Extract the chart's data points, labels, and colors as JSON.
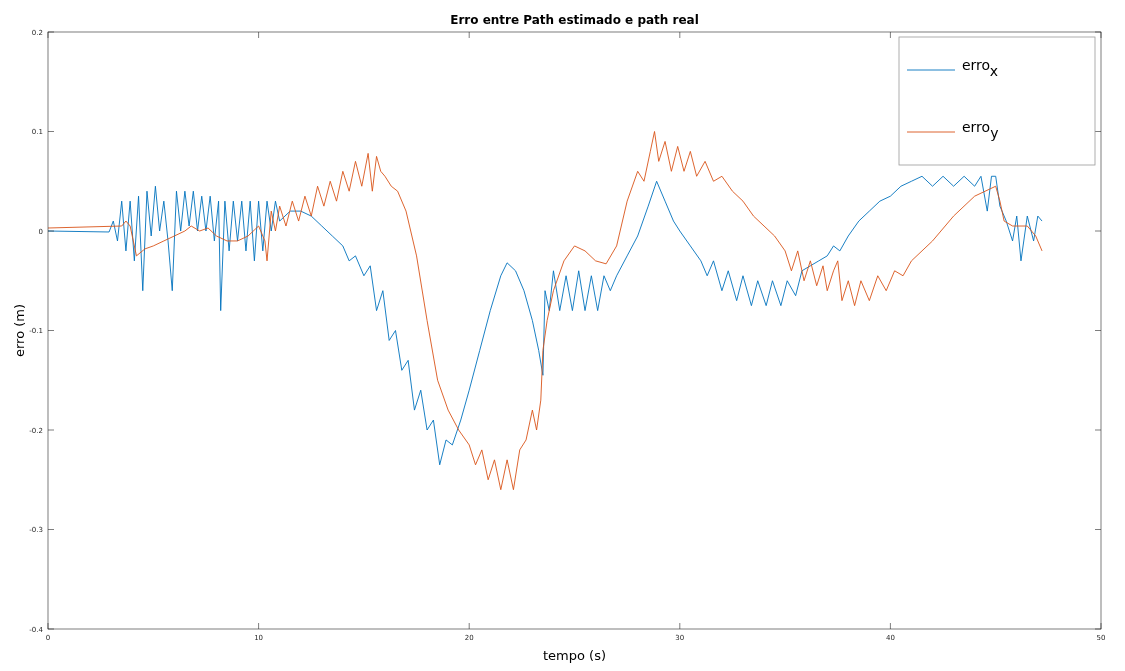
{
  "chart_data": {
    "type": "line",
    "title": "Erro entre Path estimado e path real",
    "xlabel": "tempo (s)",
    "ylabel": "erro (m)",
    "xlim": [
      0,
      50
    ],
    "xticks": [
      0,
      10,
      20,
      30,
      40,
      50
    ],
    "ylim": [
      -0.4,
      0.2
    ],
    "yticks": [
      -0.4,
      -0.3,
      -0.2,
      -0.1,
      0,
      0.1,
      0.2
    ],
    "legend": "top right",
    "grid": false,
    "series": [
      {
        "name": "erro$_{x}$",
        "color": "#0072bd",
        "x": [
          0,
          2.9,
          3.1,
          3.3,
          3.5,
          3.7,
          3.9,
          4.1,
          4.3,
          4.5,
          4.7,
          4.9,
          5.1,
          5.3,
          5.5,
          5.7,
          5.9,
          6.1,
          6.3,
          6.5,
          6.7,
          6.9,
          7.1,
          7.3,
          7.5,
          7.7,
          7.9,
          8.1,
          8.2,
          8.4,
          8.6,
          8.8,
          9.0,
          9.2,
          9.4,
          9.6,
          9.8,
          10.0,
          10.2,
          10.4,
          10.6,
          10.8,
          11.0,
          11.5,
          12.0,
          12.5,
          13,
          13.5,
          14,
          14.3,
          14.6,
          15,
          15.3,
          15.6,
          15.9,
          16.2,
          16.5,
          16.8,
          17.1,
          17.4,
          17.7,
          18,
          18.3,
          18.6,
          18.9,
          19.2,
          19.6,
          20,
          20.5,
          21,
          21.5,
          21.8,
          22.2,
          22.6,
          23,
          23.3,
          23.5,
          23.6,
          23.8,
          24,
          24.3,
          24.6,
          24.9,
          25.2,
          25.5,
          25.8,
          26.1,
          26.4,
          26.7,
          27,
          27.5,
          28,
          28.5,
          28.9,
          29.3,
          29.7,
          30,
          30.5,
          31,
          31.3,
          31.6,
          32,
          32.3,
          32.7,
          33,
          33.4,
          33.7,
          34.1,
          34.4,
          34.8,
          35.1,
          35.5,
          35.8,
          36.2,
          36.6,
          37,
          37.3,
          37.6,
          38,
          38.5,
          39,
          39.5,
          40,
          40.5,
          41,
          41.5,
          42,
          42.5,
          43,
          43.5,
          44,
          44.3,
          44.6,
          44.8,
          45,
          45.2,
          45.5,
          45.8,
          46,
          46.2,
          46.5,
          46.8,
          47.0,
          47.2
        ],
        "values": [
          0,
          -0.001,
          0.01,
          -0.01,
          0.03,
          -0.02,
          0.03,
          -0.03,
          0.035,
          -0.06,
          0.04,
          -0.005,
          0.045,
          0.0,
          0.03,
          -0.01,
          -0.06,
          0.04,
          0.0,
          0.04,
          0.005,
          0.04,
          0.0,
          0.035,
          0.0,
          0.035,
          -0.01,
          0.03,
          -0.08,
          0.03,
          -0.02,
          0.03,
          -0.01,
          0.03,
          -0.02,
          0.03,
          -0.03,
          0.03,
          -0.02,
          0.03,
          0.0,
          0.03,
          0.01,
          0.02,
          0.02,
          0.015,
          0.005,
          -0.005,
          -0.015,
          -0.03,
          -0.025,
          -0.045,
          -0.035,
          -0.08,
          -0.06,
          -0.11,
          -0.1,
          -0.14,
          -0.13,
          -0.18,
          -0.16,
          -0.2,
          -0.19,
          -0.235,
          -0.21,
          -0.215,
          -0.19,
          -0.16,
          -0.12,
          -0.08,
          -0.045,
          -0.032,
          -0.04,
          -0.06,
          -0.09,
          -0.12,
          -0.145,
          -0.06,
          -0.08,
          -0.04,
          -0.08,
          -0.045,
          -0.08,
          -0.04,
          -0.08,
          -0.045,
          -0.08,
          -0.045,
          -0.06,
          -0.045,
          -0.025,
          -0.005,
          0.025,
          0.05,
          0.03,
          0.01,
          0.0,
          -0.015,
          -0.03,
          -0.045,
          -0.03,
          -0.06,
          -0.04,
          -0.07,
          -0.045,
          -0.075,
          -0.05,
          -0.075,
          -0.05,
          -0.075,
          -0.05,
          -0.065,
          -0.04,
          -0.035,
          -0.03,
          -0.025,
          -0.015,
          -0.02,
          -0.005,
          0.01,
          0.02,
          0.03,
          0.035,
          0.045,
          0.05,
          0.055,
          0.045,
          0.055,
          0.045,
          0.055,
          0.045,
          0.055,
          0.02,
          0.055,
          0.055,
          0.025,
          0.01,
          -0.01,
          0.015,
          -0.03,
          0.015,
          -0.01,
          0.015,
          0.01
        ]
      },
      {
        "name": "erro$_{y}$",
        "color": "#d95319",
        "x": [
          0,
          3.5,
          3.7,
          3.9,
          4.2,
          4.6,
          5,
          5.5,
          6,
          6.5,
          6.8,
          7.2,
          7.6,
          8,
          8.5,
          9,
          9.5,
          10,
          10.3,
          10.4,
          10.6,
          10.8,
          11,
          11.3,
          11.6,
          11.9,
          12.2,
          12.5,
          12.8,
          13.1,
          13.4,
          13.7,
          14,
          14.3,
          14.6,
          14.9,
          15.2,
          15.4,
          15.6,
          15.8,
          16,
          16.3,
          16.6,
          17,
          17.5,
          18,
          18.5,
          19,
          19.5,
          20,
          20.3,
          20.6,
          20.9,
          21.2,
          21.5,
          21.8,
          22.1,
          22.4,
          22.7,
          23,
          23.2,
          23.4,
          23.5,
          23.7,
          24,
          24.5,
          25,
          25.5,
          26,
          26.5,
          27,
          27.5,
          28,
          28.3,
          28.6,
          28.8,
          29,
          29.3,
          29.6,
          29.9,
          30.2,
          30.5,
          30.8,
          31.2,
          31.6,
          32,
          32.5,
          33,
          33.5,
          34,
          34.5,
          35,
          35.3,
          35.6,
          35.9,
          36.2,
          36.5,
          36.8,
          37,
          37.3,
          37.5,
          37.7,
          38,
          38.3,
          38.6,
          39,
          39.4,
          39.8,
          40.2,
          40.6,
          41,
          42,
          43,
          44,
          45,
          45.2,
          45.4,
          45.8,
          46.5,
          46.9,
          47.2
        ],
        "values": [
          0.003,
          0.005,
          0.01,
          0.005,
          -0.025,
          -0.018,
          -0.015,
          -0.01,
          -0.005,
          0.0,
          0.005,
          0.0,
          0.003,
          -0.005,
          -0.01,
          -0.01,
          -0.005,
          0.005,
          -0.01,
          -0.03,
          0.02,
          0.0,
          0.025,
          0.005,
          0.03,
          0.01,
          0.035,
          0.015,
          0.045,
          0.025,
          0.05,
          0.03,
          0.06,
          0.04,
          0.07,
          0.045,
          0.078,
          0.04,
          0.075,
          0.06,
          0.055,
          0.045,
          0.04,
          0.02,
          -0.025,
          -0.09,
          -0.15,
          -0.18,
          -0.2,
          -0.215,
          -0.235,
          -0.22,
          -0.25,
          -0.23,
          -0.26,
          -0.23,
          -0.26,
          -0.22,
          -0.21,
          -0.18,
          -0.2,
          -0.17,
          -0.12,
          -0.09,
          -0.06,
          -0.03,
          -0.015,
          -0.02,
          -0.03,
          -0.033,
          -0.015,
          0.03,
          0.06,
          0.05,
          0.08,
          0.1,
          0.07,
          0.09,
          0.06,
          0.085,
          0.06,
          0.08,
          0.055,
          0.07,
          0.05,
          0.055,
          0.04,
          0.03,
          0.015,
          0.005,
          -0.005,
          -0.02,
          -0.04,
          -0.02,
          -0.05,
          -0.03,
          -0.055,
          -0.035,
          -0.06,
          -0.04,
          -0.03,
          -0.07,
          -0.05,
          -0.075,
          -0.05,
          -0.07,
          -0.045,
          -0.06,
          -0.04,
          -0.045,
          -0.03,
          -0.01,
          0.015,
          0.035,
          0.045,
          0.03,
          0.01,
          0.005,
          0.005,
          -0.005,
          -0.02
        ]
      }
    ]
  }
}
